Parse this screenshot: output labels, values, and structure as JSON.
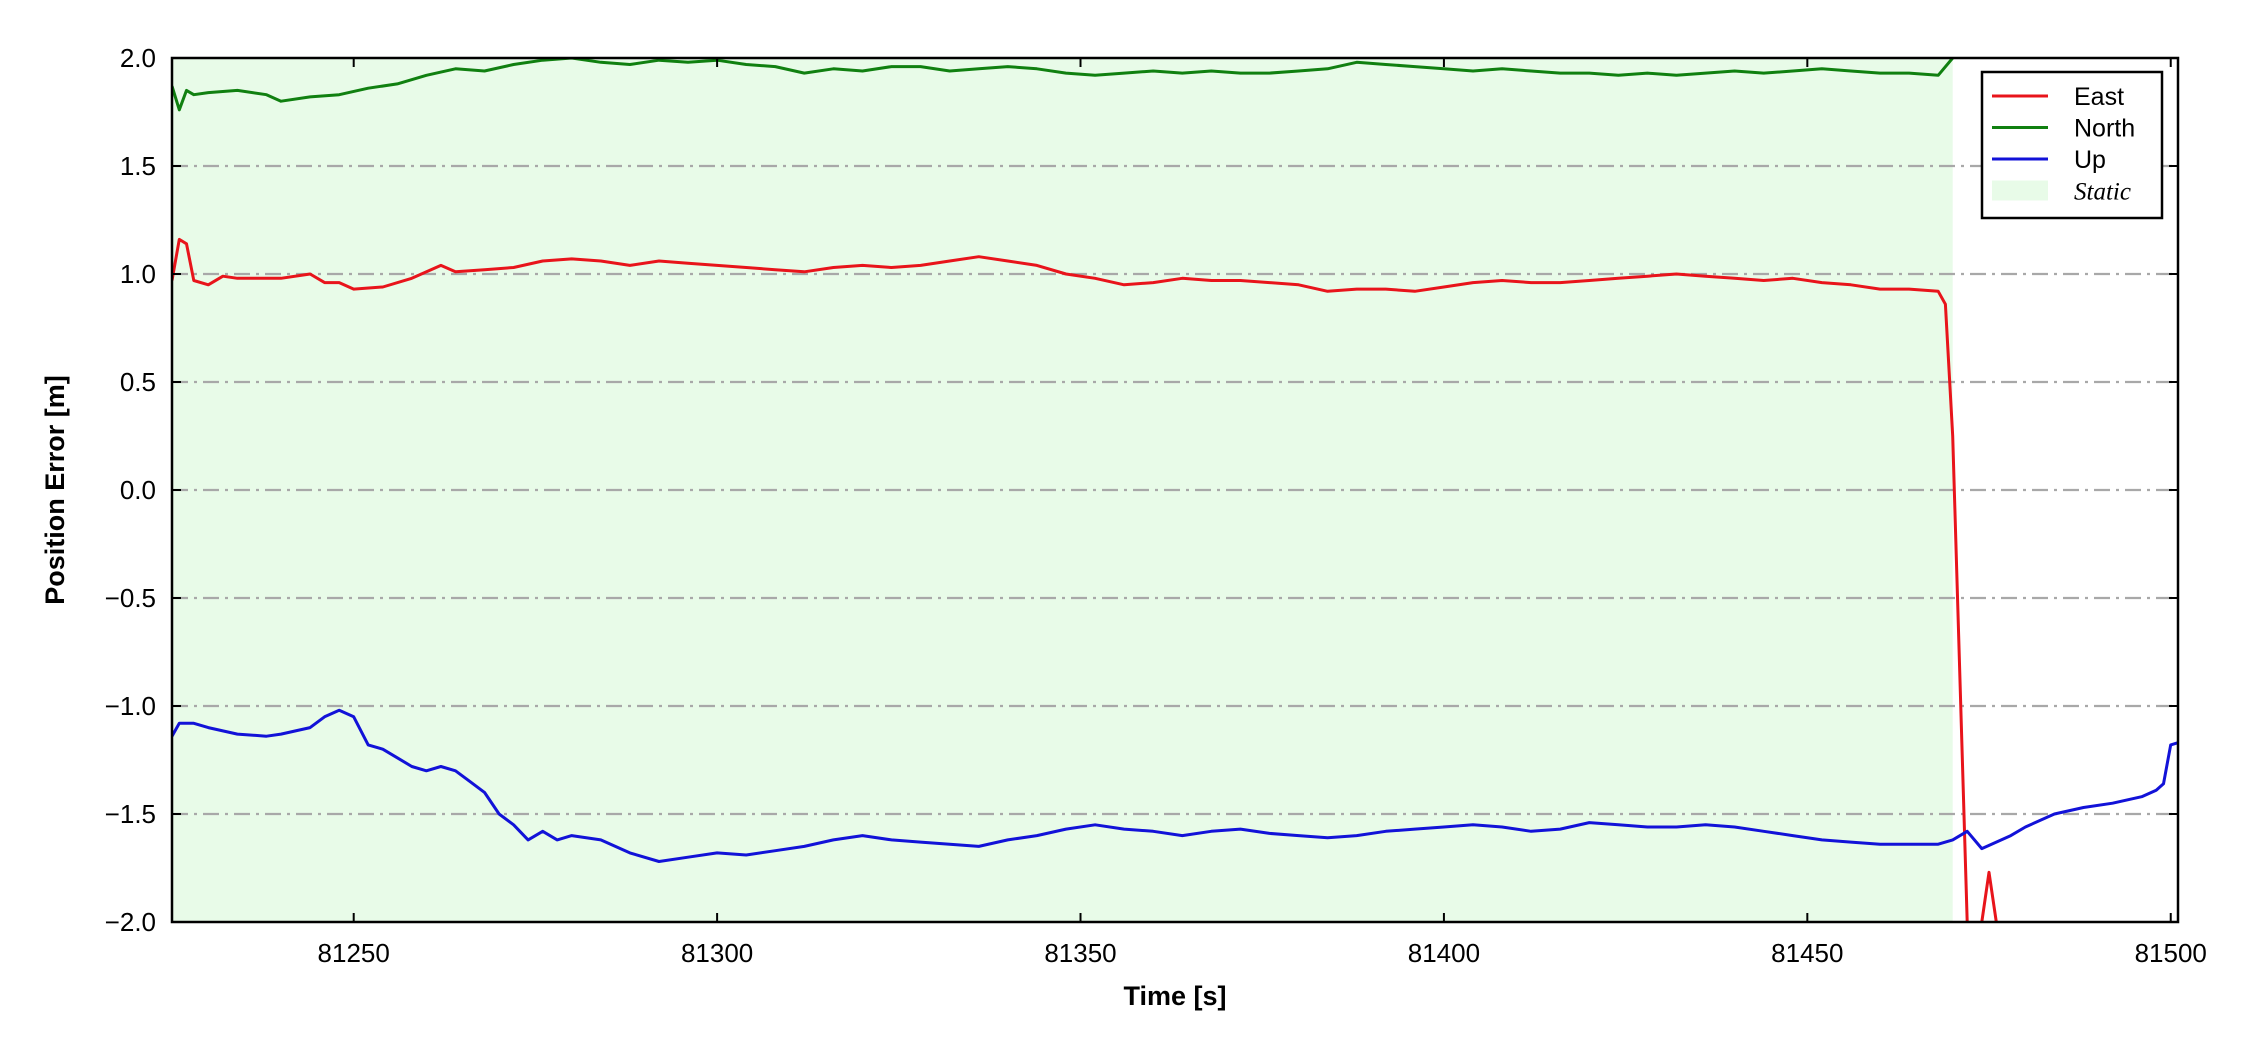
{
  "chart_data": {
    "type": "line",
    "title": "",
    "xlabel": "Time [s]",
    "ylabel": "Position Error [m]",
    "xlim": [
      81225,
      81501
    ],
    "ylim": [
      -2.0,
      2.0
    ],
    "x_ticks": [
      81250,
      81300,
      81350,
      81400,
      81450,
      81500
    ],
    "x_tick_labels": [
      "81250",
      "81300",
      "81350",
      "81400",
      "81450",
      "81500"
    ],
    "y_ticks": [
      2.0,
      1.5,
      1.0,
      0.5,
      0.0,
      -0.5,
      -1.0,
      -1.5,
      -2.0
    ],
    "y_tick_labels": [
      "2.0",
      "1.5",
      "1.0",
      "0.5",
      "0.0",
      "−0.5",
      "−1.0",
      "−1.5",
      "−2.0"
    ],
    "grid": "horizontal dash-dot",
    "legend_position": "top-right",
    "static_region": {
      "label": "Static",
      "x_start": 81225,
      "x_end": 81470,
      "color": "#e8fbe8"
    },
    "series": [
      {
        "name": "East",
        "color": "#e8141b",
        "x": [
          81225,
          81226,
          81227,
          81228,
          81230,
          81232,
          81234,
          81236,
          81240,
          81244,
          81246,
          81248,
          81250,
          81254,
          81258,
          81262,
          81264,
          81268,
          81272,
          81276,
          81280,
          81284,
          81288,
          81292,
          81296,
          81300,
          81304,
          81308,
          81312,
          81316,
          81320,
          81324,
          81328,
          81332,
          81336,
          81340,
          81344,
          81348,
          81352,
          81356,
          81360,
          81364,
          81368,
          81372,
          81376,
          81380,
          81384,
          81388,
          81392,
          81396,
          81400,
          81404,
          81408,
          81412,
          81416,
          81420,
          81424,
          81428,
          81432,
          81436,
          81440,
          81444,
          81448,
          81452,
          81456,
          81460,
          81464,
          81468,
          81469,
          81470,
          81472,
          81473,
          81474,
          81475,
          81476
        ],
        "values": [
          0.97,
          1.16,
          1.14,
          0.97,
          0.95,
          0.99,
          0.98,
          0.98,
          0.98,
          1.0,
          0.96,
          0.96,
          0.93,
          0.94,
          0.98,
          1.04,
          1.01,
          1.02,
          1.03,
          1.06,
          1.07,
          1.06,
          1.04,
          1.06,
          1.05,
          1.04,
          1.03,
          1.02,
          1.01,
          1.03,
          1.04,
          1.03,
          1.04,
          1.06,
          1.08,
          1.06,
          1.04,
          1.0,
          0.98,
          0.95,
          0.96,
          0.98,
          0.97,
          0.97,
          0.96,
          0.95,
          0.92,
          0.93,
          0.93,
          0.92,
          0.94,
          0.96,
          0.97,
          0.96,
          0.96,
          0.97,
          0.98,
          0.99,
          1.0,
          0.99,
          0.98,
          0.97,
          0.98,
          0.96,
          0.95,
          0.93,
          0.93,
          0.92,
          0.86,
          0.25,
          -2.0,
          -2.1,
          -2.0,
          -1.77,
          -2.0
        ]
      },
      {
        "name": "North",
        "color": "#108010",
        "x": [
          81225,
          81226,
          81227,
          81228,
          81230,
          81234,
          81238,
          81240,
          81244,
          81248,
          81252,
          81256,
          81260,
          81264,
          81268,
          81272,
          81276,
          81280,
          81284,
          81288,
          81292,
          81296,
          81300,
          81304,
          81308,
          81312,
          81316,
          81320,
          81324,
          81328,
          81332,
          81336,
          81340,
          81344,
          81348,
          81352,
          81356,
          81360,
          81364,
          81368,
          81372,
          81376,
          81380,
          81384,
          81388,
          81392,
          81396,
          81400,
          81404,
          81408,
          81412,
          81416,
          81420,
          81424,
          81428,
          81432,
          81436,
          81440,
          81444,
          81448,
          81452,
          81456,
          81460,
          81464,
          81468,
          81470
        ],
        "values": [
          1.87,
          1.76,
          1.85,
          1.83,
          1.84,
          1.85,
          1.83,
          1.8,
          1.82,
          1.83,
          1.86,
          1.88,
          1.92,
          1.95,
          1.94,
          1.97,
          1.99,
          2.0,
          1.98,
          1.97,
          1.99,
          1.98,
          1.99,
          1.97,
          1.96,
          1.93,
          1.95,
          1.94,
          1.96,
          1.96,
          1.94,
          1.95,
          1.96,
          1.95,
          1.93,
          1.92,
          1.93,
          1.94,
          1.93,
          1.94,
          1.93,
          1.93,
          1.94,
          1.95,
          1.98,
          1.97,
          1.96,
          1.95,
          1.94,
          1.95,
          1.94,
          1.93,
          1.93,
          1.92,
          1.93,
          1.92,
          1.93,
          1.94,
          1.93,
          1.94,
          1.95,
          1.94,
          1.93,
          1.93,
          1.92,
          2.0
        ]
      },
      {
        "name": "Up",
        "color": "#1212d8",
        "x": [
          81225,
          81226,
          81228,
          81230,
          81234,
          81238,
          81240,
          81244,
          81246,
          81248,
          81250,
          81252,
          81254,
          81256,
          81258,
          81260,
          81262,
          81264,
          81266,
          81268,
          81270,
          81272,
          81274,
          81276,
          81278,
          81280,
          81284,
          81288,
          81292,
          81296,
          81300,
          81304,
          81308,
          81312,
          81316,
          81320,
          81324,
          81328,
          81332,
          81336,
          81340,
          81344,
          81348,
          81352,
          81356,
          81360,
          81364,
          81368,
          81372,
          81376,
          81380,
          81384,
          81388,
          81392,
          81396,
          81400,
          81404,
          81408,
          81412,
          81416,
          81420,
          81424,
          81428,
          81432,
          81436,
          81440,
          81444,
          81448,
          81452,
          81456,
          81460,
          81464,
          81468,
          81470,
          81472,
          81474,
          81476,
          81478,
          81480,
          81484,
          81488,
          81492,
          81496,
          81498,
          81499,
          81500,
          81501
        ],
        "values": [
          -1.14,
          -1.08,
          -1.08,
          -1.1,
          -1.13,
          -1.14,
          -1.13,
          -1.1,
          -1.05,
          -1.02,
          -1.05,
          -1.18,
          -1.2,
          -1.24,
          -1.28,
          -1.3,
          -1.28,
          -1.3,
          -1.35,
          -1.4,
          -1.5,
          -1.55,
          -1.62,
          -1.58,
          -1.62,
          -1.6,
          -1.62,
          -1.68,
          -1.72,
          -1.7,
          -1.68,
          -1.69,
          -1.67,
          -1.65,
          -1.62,
          -1.6,
          -1.62,
          -1.63,
          -1.64,
          -1.65,
          -1.62,
          -1.6,
          -1.57,
          -1.55,
          -1.57,
          -1.58,
          -1.6,
          -1.58,
          -1.57,
          -1.59,
          -1.6,
          -1.61,
          -1.6,
          -1.58,
          -1.57,
          -1.56,
          -1.55,
          -1.56,
          -1.58,
          -1.57,
          -1.54,
          -1.55,
          -1.56,
          -1.56,
          -1.55,
          -1.56,
          -1.58,
          -1.6,
          -1.62,
          -1.63,
          -1.64,
          -1.64,
          -1.64,
          -1.62,
          -1.58,
          -1.66,
          -1.63,
          -1.6,
          -1.56,
          -1.5,
          -1.47,
          -1.45,
          -1.42,
          -1.39,
          -1.36,
          -1.18,
          -1.17
        ]
      }
    ]
  }
}
